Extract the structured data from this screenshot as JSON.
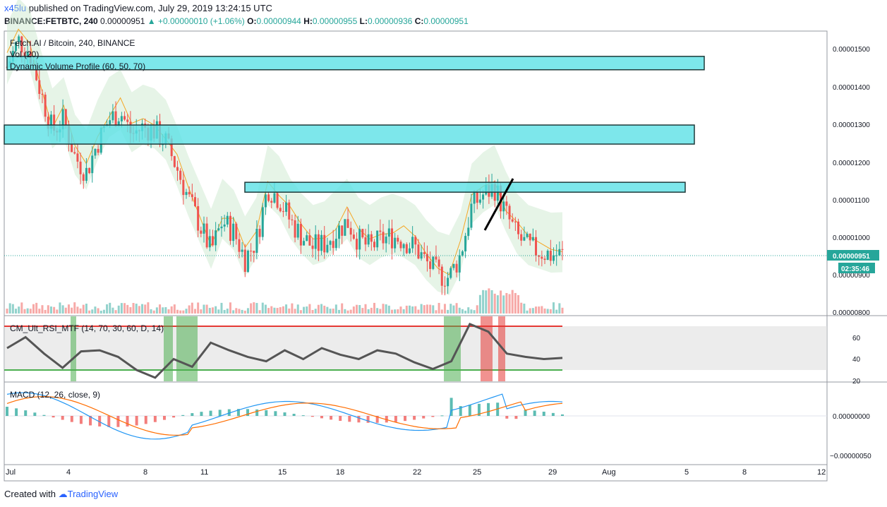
{
  "header": {
    "author": "x45lu",
    "published_text": "published on TradingView.com, July 29, 2019 13:24:15 UTC",
    "symbol": "BINANCE:FETBTC, 240",
    "last": "0.00000951",
    "change": "▲ +0.00000010 (+1.06%)",
    "o_label": "O:",
    "o": "0.00000944",
    "h_label": "H:",
    "h": "0.00000955",
    "l_label": "L:",
    "l": "0.00000936",
    "c_label": "C:",
    "c": "0.00000951"
  },
  "legend": {
    "main": "Fetch.AI / Bitcoin, 240, BINANCE",
    "vol": "Vol (20)",
    "dvp": "Dynamic Volume Profile (60, 50, 70)",
    "rsi": "CM_Ult_RSI_MTF (14, 70, 30, 60, D, 14)",
    "macd": "MACD (12, 26, close, 9)"
  },
  "price_axis": {
    "ticks": [
      "0.00001500",
      "0.00001400",
      "0.00001300",
      "0.00001200",
      "0.00001100",
      "0.00001000",
      "0.00000900",
      "0.00000800"
    ],
    "last_label": "0.00000951",
    "countdown": "02:35:46"
  },
  "rsi_axis": {
    "ticks": [
      "60",
      "40",
      "20"
    ]
  },
  "macd_axis": {
    "ticks": [
      "0.00000000",
      "−0.00000050"
    ]
  },
  "time_axis": {
    "ticks": [
      "Jul",
      "4",
      "8",
      "11",
      "15",
      "18",
      "22",
      "25",
      "29",
      "Aug",
      "5",
      "8",
      "12"
    ]
  },
  "footer": {
    "created": "Created with",
    "brand": "TradingView"
  },
  "colors": {
    "up": "#26a69a",
    "down": "#ef5350",
    "zone": "#5ce1e6",
    "ichimoku": "#c8e6c9",
    "rsi_line": "#555555",
    "macd": "#2196f3",
    "signal": "#ff6d00"
  },
  "chart_data": [
    {
      "type": "candlestick",
      "title": "Fetch.AI / Bitcoin, 240, BINANCE",
      "ylim": [
        7.9e-06,
        1.55e-05
      ],
      "close_path": [
        1.45e-05,
        1.52e-05,
        1.49e-05,
        1.38e-05,
        1.28e-05,
        1.31e-05,
        1.21e-05,
        1.17e-05,
        1.25e-05,
        1.31e-05,
        1.33e-05,
        1.27e-05,
        1.29e-05,
        1.28e-05,
        1.25e-05,
        1.18e-05,
        1.1e-05,
        1.03e-05,
        9.6e-06,
        1.04e-05,
        1.01e-05,
        9.4e-06,
        9.9e-06,
        1.13e-05,
        1.1e-05,
        1.04e-05,
        1e-05,
        9.7e-06,
        9.8e-06,
        1.01e-05,
        1.04e-05,
        9.9e-06,
        9.7e-06,
        9.9e-06,
        1e-05,
        9.9e-06,
        9.7e-06,
        9.3e-06,
        9e-06,
        8.9e-06,
        9.5e-06,
        1.08e-05,
        1.11e-05,
        1.13e-05,
        1.06e-05,
        1e-05,
        9.7e-06,
        9.6e-06,
        9.5e-06,
        9.51e-06
      ],
      "horizontal_zones": [
        1.46e-05,
        1.27e-05,
        1.13e-05
      ],
      "last_price": 9.51e-06
    },
    {
      "type": "line",
      "title": "CM_Ult_RSI_MTF (14, 70, 30, 60, D, 14)",
      "ylim": [
        20,
        75
      ],
      "levels": [
        70,
        30
      ],
      "values": [
        50,
        60,
        45,
        32,
        47,
        48,
        42,
        30,
        23,
        40,
        33,
        55,
        48,
        42,
        38,
        48,
        40,
        50,
        44,
        40,
        48,
        45,
        37,
        31,
        38,
        72,
        65,
        45,
        42,
        40,
        41
      ]
    },
    {
      "type": "bar",
      "title": "MACD (12, 26, close, 9)",
      "ylim": [
        -6e-07,
        2.5e-07
      ]
    }
  ]
}
